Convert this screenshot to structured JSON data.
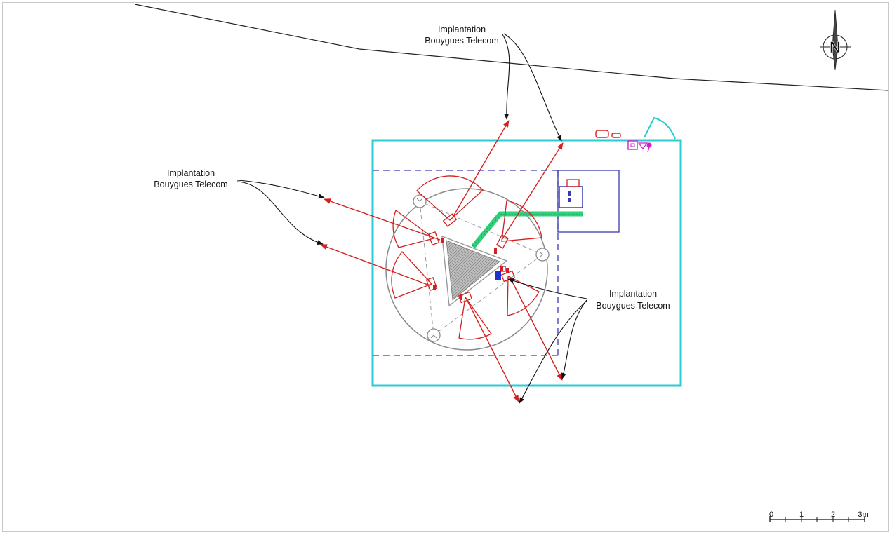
{
  "labels": {
    "top": [
      "Implantation",
      "Bouygues Telecom"
    ],
    "left": [
      "Implantation",
      "Bouygues Telecom"
    ],
    "right": [
      "Implantation",
      "Bouygues Telecom"
    ]
  },
  "north": {
    "letter": "N"
  },
  "scale_bar": {
    "ticks": [
      "0",
      "1",
      "2",
      "3m"
    ]
  },
  "colors": {
    "site_boundary": "#2ecbd0",
    "reserved_zone": "#3a3ab0",
    "antenna_and_azimuth": "#d42020",
    "callout": "#111111",
    "cable_tray": "#2fd27a",
    "electrical": "#d020c8",
    "tower_outline": "#888888"
  }
}
